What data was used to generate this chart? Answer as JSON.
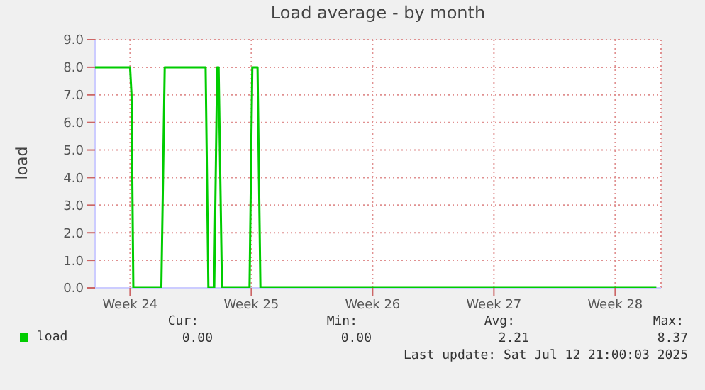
{
  "chart_data": {
    "type": "line",
    "title": "Load average - by month",
    "ylabel": "load",
    "x": [
      "2025-06-10T11:30",
      "2025-06-12T12:00",
      "2025-06-12T14:00",
      "2025-06-12T16:30",
      "2025-06-14T07:20",
      "2025-06-14T12:00",
      "2025-06-16T20:40",
      "2025-06-17T00:30",
      "2025-06-17T08:35",
      "2025-06-17T12:40",
      "2025-06-17T14:40",
      "2025-06-17T19:20",
      "2025-06-19T09:30",
      "2025-06-19T13:20",
      "2025-06-19T20:35",
      "2025-06-20T00:35",
      "2025-07-12T21:00"
    ],
    "series": [
      {
        "name": "load",
        "color": "#00cc00",
        "values": [
          8.0,
          8.0,
          7.0,
          0,
          0,
          8.0,
          8.0,
          0,
          0,
          8.0,
          8.0,
          0,
          0,
          8.0,
          8.0,
          0,
          0
        ]
      }
    ],
    "xlim": [
      "2025-06-10T11:30",
      "2025-07-13T03:30"
    ],
    "xticks": [
      {
        "value": "2025-06-12T12:00",
        "label": "Week 24"
      },
      {
        "value": "2025-06-19T12:00",
        "label": "Week 25"
      },
      {
        "value": "2025-06-26T12:00",
        "label": "Week 26"
      },
      {
        "value": "2025-07-03T12:00",
        "label": "Week 27"
      },
      {
        "value": "2025-07-10T12:00",
        "label": "Week 28"
      }
    ],
    "ylim": [
      0,
      9
    ],
    "yticks": [
      {
        "value": 0,
        "label": "0.0"
      },
      {
        "value": 1,
        "label": "1.0"
      },
      {
        "value": 2,
        "label": "2.0"
      },
      {
        "value": 3,
        "label": "3.0"
      },
      {
        "value": 4,
        "label": "4.0"
      },
      {
        "value": 5,
        "label": "5.0"
      },
      {
        "value": 6,
        "label": "6.0"
      },
      {
        "value": 7,
        "label": "7.0"
      },
      {
        "value": 8,
        "label": "8.0"
      },
      {
        "value": 9,
        "label": "9.0"
      }
    ],
    "grid": true,
    "legend": "bottom",
    "marker": "none",
    "line_style": "solid",
    "annotations": [
      "Cur:",
      "Min:",
      "Avg:",
      "Max:",
      "0.00",
      "0.00",
      "2.21",
      "8.37",
      "Last update: Sat Jul 12 21:00:03 2025"
    ]
  }
}
